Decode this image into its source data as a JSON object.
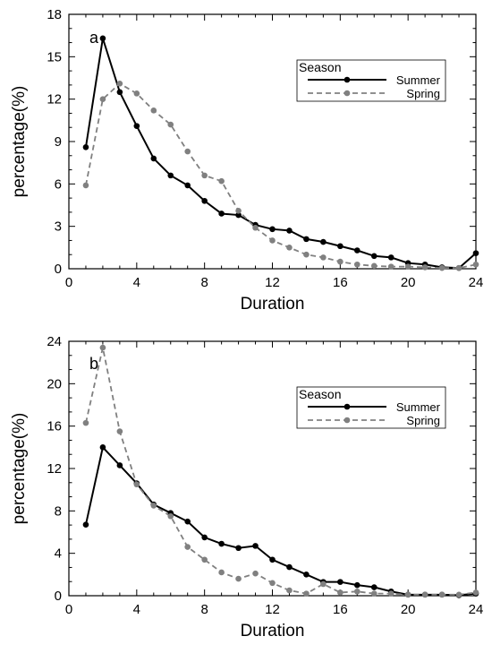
{
  "chart_data": [
    {
      "type": "line",
      "panel_label": "a",
      "xlabel": "Duration",
      "ylabel": "percentage(%)",
      "xlim": [
        0,
        24
      ],
      "ylim": [
        0,
        18
      ],
      "xticks": [
        0,
        4,
        8,
        12,
        16,
        20,
        24
      ],
      "yticks": [
        0,
        3,
        6,
        9,
        12,
        15,
        18
      ],
      "legend": {
        "title": "Season",
        "placement": "top-right"
      },
      "x": [
        1,
        2,
        3,
        4,
        5,
        6,
        7,
        8,
        9,
        10,
        11,
        12,
        13,
        14,
        15,
        16,
        17,
        18,
        19,
        20,
        21,
        22,
        23,
        24
      ],
      "series": [
        {
          "name": "Summer",
          "color": "#000000",
          "dashed": false,
          "values": [
            8.6,
            16.3,
            12.5,
            10.1,
            7.8,
            6.6,
            5.9,
            4.8,
            3.9,
            3.8,
            3.1,
            2.8,
            2.7,
            2.1,
            1.9,
            1.6,
            1.3,
            0.9,
            0.8,
            0.4,
            0.3,
            0.1,
            0.05,
            1.1
          ]
        },
        {
          "name": "Spring",
          "color": "#808080",
          "dashed": true,
          "values": [
            5.9,
            12.0,
            13.1,
            12.4,
            11.2,
            10.2,
            8.3,
            6.6,
            6.2,
            4.1,
            2.9,
            2.0,
            1.5,
            1.0,
            0.8,
            0.5,
            0.3,
            0.2,
            0.15,
            0.15,
            0.1,
            0.05,
            0.05,
            0.3
          ]
        }
      ]
    },
    {
      "type": "line",
      "panel_label": "b",
      "xlabel": "Duration",
      "ylabel": "percentage(%)",
      "xlim": [
        0,
        24
      ],
      "ylim": [
        0,
        24
      ],
      "xticks": [
        0,
        4,
        8,
        12,
        16,
        20,
        24
      ],
      "yticks": [
        0,
        4,
        8,
        12,
        16,
        20,
        24
      ],
      "legend": {
        "title": "Season",
        "placement": "top-right"
      },
      "x": [
        1,
        2,
        3,
        4,
        5,
        6,
        7,
        8,
        9,
        10,
        11,
        12,
        13,
        14,
        15,
        16,
        17,
        18,
        19,
        20,
        21,
        22,
        23,
        24
      ],
      "series": [
        {
          "name": "Summer",
          "color": "#000000",
          "dashed": false,
          "values": [
            6.7,
            14.0,
            12.3,
            10.6,
            8.6,
            7.8,
            7.0,
            5.5,
            4.9,
            4.5,
            4.7,
            3.4,
            2.7,
            2.0,
            1.3,
            1.3,
            1.0,
            0.8,
            0.4,
            0.1,
            0.1,
            0.1,
            0.05,
            0.2
          ]
        },
        {
          "name": "Spring",
          "color": "#808080",
          "dashed": true,
          "values": [
            16.3,
            23.4,
            15.5,
            10.5,
            8.5,
            7.5,
            4.6,
            3.4,
            2.2,
            1.6,
            2.1,
            1.2,
            0.5,
            0.2,
            1.1,
            0.3,
            0.4,
            0.2,
            0.2,
            0.1,
            0.1,
            0.1,
            0.1,
            0.3
          ]
        }
      ]
    }
  ]
}
